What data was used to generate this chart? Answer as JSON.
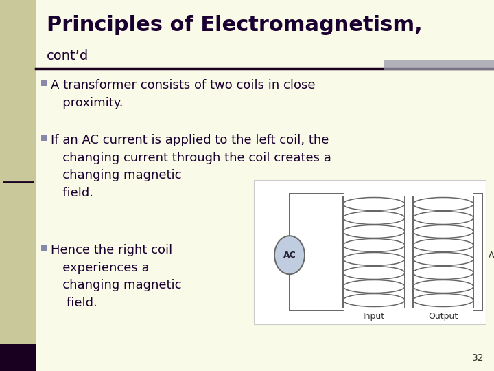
{
  "bg_color": "#fafae8",
  "left_bar_color": "#c8c89a",
  "left_bar_width": 0.072,
  "title_main": "Principles of Electromagnetism,",
  "title_sub": "cont’d",
  "title_color": "#1a0030",
  "title_fontsize": 22,
  "subtitle_fontsize": 14,
  "sep_color": "#1a0020",
  "sep2_color": "#9999aa",
  "bullet_color": "#8888aa",
  "text_color": "#1a0030",
  "body_fontsize": 13,
  "page_number": "32",
  "page_num_fontsize": 10,
  "wire_color": "#666666",
  "ac_fill": "#c0cce0",
  "coil_color": "#666666",
  "diag_bg": "#ffffff",
  "diag_border": "#cccccc"
}
